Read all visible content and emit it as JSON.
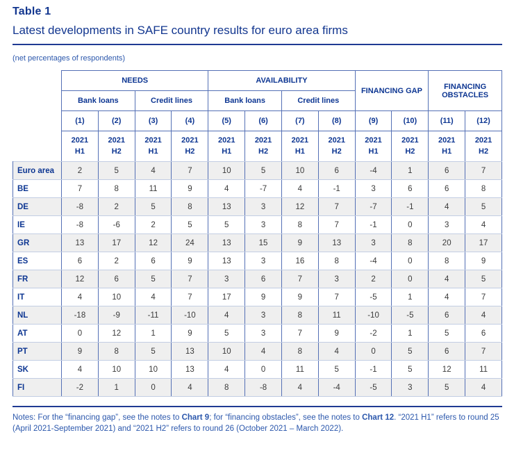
{
  "page": {
    "title": "Table 1",
    "subtitle": "Latest developments in SAFE country results for euro area firms",
    "unit_note": "(net percentages of respondents)"
  },
  "colors": {
    "title_navy": "#12368f",
    "header_text": "#0d3692",
    "border_strong": "#5470b5",
    "border_light": "#c2cde3",
    "rule": "#1f3a93",
    "row_shade": "#efefef",
    "value_text": "#3a3a3a",
    "notes_text": "#2b57ac"
  },
  "table": {
    "column_groups": [
      {
        "label": "NEEDS",
        "colspan": 4,
        "rowspan": 1
      },
      {
        "label": "AVAILABILITY",
        "colspan": 4,
        "rowspan": 1
      },
      {
        "label": "FINANCING GAP",
        "colspan": 2,
        "rowspan": 2
      },
      {
        "label": "FINANCING OBSTACLES",
        "colspan": 2,
        "rowspan": 2
      }
    ],
    "subgroups": [
      {
        "label": "Bank loans",
        "colspan": 2
      },
      {
        "label": "Credit lines",
        "colspan": 2
      },
      {
        "label": "Bank loans",
        "colspan": 2
      },
      {
        "label": "Credit lines",
        "colspan": 2
      }
    ],
    "column_numbers": [
      "(1)",
      "(2)",
      "(3)",
      "(4)",
      "(5)",
      "(6)",
      "(7)",
      "(8)",
      "(9)",
      "(10)",
      "(11)",
      "(12)"
    ],
    "periods": [
      "2021\nH1",
      "2021\nH2",
      "2021\nH1",
      "2021\nH2",
      "2021\nH1",
      "2021\nH2",
      "2021\nH1",
      "2021\nH2",
      "2021\nH1",
      "2021\nH2",
      "2021\nH1",
      "2021\nH2"
    ],
    "rows": [
      {
        "label": "Euro area",
        "values": [
          2,
          5,
          4,
          7,
          10,
          5,
          10,
          6,
          -4,
          1,
          6,
          7
        ]
      },
      {
        "label": "BE",
        "values": [
          7,
          8,
          11,
          9,
          4,
          -7,
          4,
          -1,
          3,
          6,
          6,
          8
        ]
      },
      {
        "label": "DE",
        "values": [
          -8,
          2,
          5,
          8,
          13,
          3,
          12,
          7,
          -7,
          -1,
          4,
          5
        ]
      },
      {
        "label": "IE",
        "values": [
          -8,
          -6,
          2,
          5,
          5,
          3,
          8,
          7,
          -1,
          0,
          3,
          4
        ]
      },
      {
        "label": "GR",
        "values": [
          13,
          17,
          12,
          24,
          13,
          15,
          9,
          13,
          3,
          8,
          20,
          17
        ]
      },
      {
        "label": "ES",
        "values": [
          6,
          2,
          6,
          9,
          13,
          3,
          16,
          8,
          -4,
          0,
          8,
          9
        ]
      },
      {
        "label": "FR",
        "values": [
          12,
          6,
          5,
          7,
          3,
          6,
          7,
          3,
          2,
          0,
          4,
          5
        ]
      },
      {
        "label": "IT",
        "values": [
          4,
          10,
          4,
          7,
          17,
          9,
          9,
          7,
          -5,
          1,
          4,
          7
        ]
      },
      {
        "label": "NL",
        "values": [
          -18,
          -9,
          -11,
          -10,
          4,
          3,
          8,
          11,
          -10,
          -5,
          6,
          4
        ]
      },
      {
        "label": "AT",
        "values": [
          0,
          12,
          1,
          9,
          5,
          3,
          7,
          9,
          -2,
          1,
          5,
          6
        ]
      },
      {
        "label": "PT",
        "values": [
          9,
          8,
          5,
          13,
          10,
          4,
          8,
          4,
          0,
          5,
          6,
          7
        ]
      },
      {
        "label": "SK",
        "values": [
          4,
          10,
          10,
          13,
          4,
          0,
          11,
          5,
          -1,
          5,
          12,
          11
        ]
      },
      {
        "label": "FI",
        "values": [
          -2,
          1,
          0,
          4,
          8,
          -8,
          4,
          -4,
          -5,
          3,
          5,
          4
        ]
      }
    ]
  },
  "notes": {
    "segments": [
      {
        "text": "Notes: For the “financing gap”, see the notes to ",
        "bold": false
      },
      {
        "text": "Chart 9",
        "bold": true
      },
      {
        "text": "; for “financing obstacles”, see the notes to ",
        "bold": false
      },
      {
        "text": "Chart 12",
        "bold": true
      },
      {
        "text": ". “2021 H1” refers to round 25 (April 2021-September 2021) and “2021 H2” refers to round 26 (October 2021 – March 2022).",
        "bold": false
      }
    ]
  }
}
